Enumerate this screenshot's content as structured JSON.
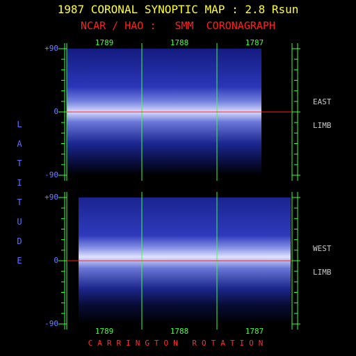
{
  "chart_data": [
    {
      "type": "synoptic-map",
      "title": "1987 CORONAL SYNOPTIC MAP : 2.8 Rsun",
      "subtitle": "NCAR / HAO :   SMM  CORONAGRAPH",
      "y_label": "LATITUDE",
      "categories": [
        "1789",
        "1788",
        "1787"
      ],
      "limb_label": [
        "EAST",
        "LIMB"
      ],
      "ylim": [
        -90,
        90
      ],
      "yticks": [
        {
          "value": 90,
          "label": "+90"
        },
        0,
        -90
      ]
    },
    {
      "type": "synoptic-map",
      "x_label": "CARRINGTON ROTATION",
      "categories": [
        "1789",
        "1788",
        "1787"
      ],
      "limb_label": [
        "WEST",
        "LIMB"
      ],
      "ylim": [
        -90,
        90
      ],
      "yticks": [
        {
          "value": 90,
          "label": "+90"
        },
        0,
        -90
      ]
    }
  ]
}
